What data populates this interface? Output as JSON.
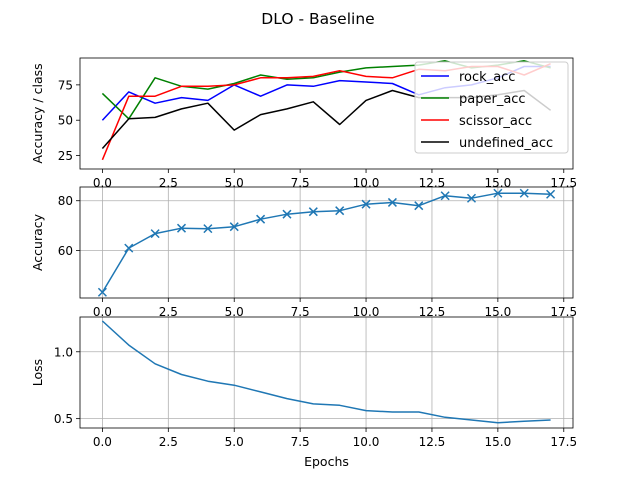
{
  "figure": {
    "title": "DLO - Baseline"
  },
  "chart_data": [
    {
      "type": "line",
      "ylabel": "Accuracy / class",
      "xlabel": "",
      "xlim": [
        -0.85,
        17.85
      ],
      "ylim": [
        15.5,
        94
      ],
      "xticks": [
        "0.0",
        "2.5",
        "5.0",
        "7.5",
        "10.0",
        "12.5",
        "15.0",
        "17.5"
      ],
      "xtick_values": [
        0,
        2.5,
        5,
        7.5,
        10,
        12.5,
        15,
        17.5
      ],
      "yticks": [
        "25",
        "50",
        "75"
      ],
      "ytick_values": [
        25,
        50,
        75
      ],
      "grid": false,
      "legend": "upper right",
      "x": [
        0,
        1,
        2,
        3,
        4,
        5,
        6,
        7,
        8,
        9,
        10,
        11,
        12,
        13,
        14,
        15,
        16,
        17
      ],
      "series": [
        {
          "name": "rock_acc",
          "color": "#0000ff",
          "values": [
            50,
            70,
            62,
            66,
            64,
            75,
            67,
            75,
            74,
            78,
            77,
            76,
            68,
            73,
            75,
            80,
            88,
            88
          ]
        },
        {
          "name": "paper_acc",
          "color": "#008000",
          "values": [
            69,
            51,
            80,
            74,
            72,
            76,
            82,
            79,
            80,
            84,
            87,
            88,
            89,
            92,
            87,
            89,
            92,
            87
          ]
        },
        {
          "name": "scissor_acc",
          "color": "#ff0000",
          "values": [
            22,
            67,
            67,
            74,
            74,
            75,
            80,
            80,
            81,
            85,
            81,
            80,
            86,
            85,
            88,
            88,
            82,
            90
          ]
        },
        {
          "name": "undefined_acc",
          "color": "#000000",
          "values": [
            30,
            51,
            52,
            58,
            62,
            43,
            54,
            58,
            63,
            47,
            64,
            71,
            66,
            66,
            66,
            68,
            71,
            57
          ]
        }
      ]
    },
    {
      "type": "line",
      "ylabel": "Accuracy",
      "xlabel": "",
      "xlim": [
        -0.85,
        17.85
      ],
      "ylim": [
        41,
        85.5
      ],
      "xticks": [
        "0.0",
        "2.5",
        "5.0",
        "7.5",
        "10.0",
        "12.5",
        "15.0",
        "17.5"
      ],
      "xtick_values": [
        0,
        2.5,
        5,
        7.5,
        10,
        12.5,
        15,
        17.5
      ],
      "yticks": [
        "60",
        "80"
      ],
      "ytick_values": [
        60,
        80
      ],
      "grid": true,
      "marker": "x",
      "color": "#1f77b4",
      "x": [
        0,
        1,
        2,
        3,
        4,
        5,
        6,
        7,
        8,
        9,
        10,
        11,
        12,
        13,
        14,
        15,
        16,
        17
      ],
      "values": [
        43.3,
        61.0,
        66.8,
        69.0,
        68.8,
        69.6,
        72.6,
        74.6,
        75.6,
        76.0,
        78.6,
        79.3,
        78.0,
        82.0,
        81.0,
        83.0,
        83.0,
        82.6
      ]
    },
    {
      "type": "line",
      "ylabel": "Loss",
      "xlabel": "Epochs",
      "xlim": [
        -0.85,
        17.85
      ],
      "ylim": [
        0.43,
        1.26
      ],
      "xticks": [
        "0.0",
        "2.5",
        "5.0",
        "7.5",
        "10.0",
        "12.5",
        "15.0",
        "17.5"
      ],
      "xtick_values": [
        0,
        2.5,
        5,
        7.5,
        10,
        12.5,
        15,
        17.5
      ],
      "yticks": [
        "0.5",
        "1.0"
      ],
      "ytick_values": [
        0.5,
        1.0
      ],
      "grid": true,
      "color": "#1f77b4",
      "x": [
        0,
        1,
        2,
        3,
        4,
        5,
        6,
        7,
        8,
        9,
        10,
        11,
        12,
        13,
        14,
        15,
        16,
        17
      ],
      "values": [
        1.23,
        1.05,
        0.91,
        0.83,
        0.78,
        0.75,
        0.7,
        0.65,
        0.61,
        0.6,
        0.56,
        0.55,
        0.55,
        0.51,
        0.49,
        0.47,
        0.48,
        0.49
      ]
    }
  ]
}
